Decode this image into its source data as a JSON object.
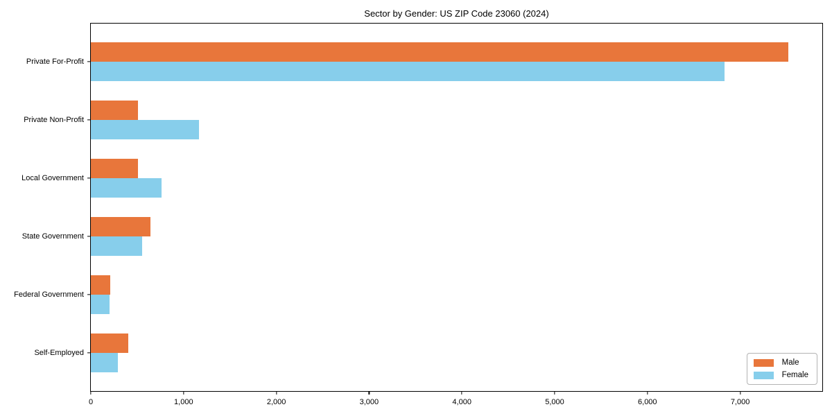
{
  "title": "Sector by Gender: US ZIP Code 23060 (2024)",
  "chart_data": {
    "type": "bar",
    "orientation": "horizontal",
    "title": "Sector by Gender: US ZIP Code 23060 (2024)",
    "categories": [
      "Private For-Profit",
      "Private Non-Profit",
      "Local Government",
      "State Government",
      "Federal Government",
      "Self-Employed"
    ],
    "series": [
      {
        "name": "Male",
        "color": "#E8763B",
        "values": [
          7520,
          505,
          510,
          640,
          210,
          400
        ]
      },
      {
        "name": "Female",
        "color": "#87CEEB",
        "values": [
          6830,
          1165,
          760,
          555,
          200,
          295
        ]
      }
    ],
    "xlabel": "",
    "ylabel": "",
    "xlim": [
      0,
      7900
    ],
    "xticks": [
      0,
      1000,
      2000,
      3000,
      4000,
      5000,
      6000,
      7000
    ],
    "xtick_labels": [
      "0",
      "1,000",
      "2,000",
      "3,000",
      "4,000",
      "5,000",
      "6,000",
      "7,000"
    ],
    "grid": false,
    "legend": {
      "position": "lower right",
      "entries": [
        "Male",
        "Female"
      ]
    }
  }
}
